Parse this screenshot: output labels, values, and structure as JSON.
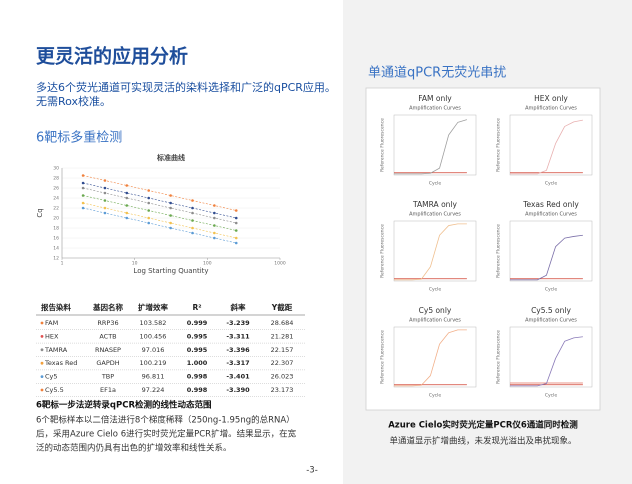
{
  "header": {
    "title": "更灵活的应用分析",
    "subtitle_lines": [
      "多达6个荧光通道可实现灵活的染料选择和广泛的qPCR应用。",
      "无需Rox校准。"
    ]
  },
  "section_title": "6靶标多重检测",
  "standard_curve": {
    "type": "line",
    "title": "标准曲线",
    "xlabel": "Log Starting Quantity",
    "ylabel": "Cq",
    "log_x": true,
    "x": [
      1.95,
      3.9,
      7.8,
      15.6,
      31.25,
      62.5,
      125,
      250
    ],
    "xlim": [
      1,
      1000
    ],
    "xticks": [
      1,
      10,
      100,
      1000
    ],
    "ylim": [
      12,
      30
    ],
    "yticks": [
      12,
      14,
      16,
      18,
      20,
      22,
      24,
      26,
      28,
      30
    ],
    "grid": true,
    "series": [
      {
        "color": "#f0803c",
        "values": [
          28.5,
          27.5,
          26.5,
          25.5,
          24.5,
          23.5,
          22.5,
          21.5
        ]
      },
      {
        "color": "#2f4b8f",
        "values": [
          27,
          26,
          25,
          24,
          23,
          22,
          21,
          20
        ]
      },
      {
        "color": "#8c8c8c",
        "values": [
          26,
          25,
          24,
          23,
          22,
          21,
          20,
          19
        ]
      },
      {
        "color": "#6aa84f",
        "values": [
          24.5,
          23.5,
          22.5,
          21.5,
          20.5,
          19.5,
          18.5,
          17.5
        ]
      },
      {
        "color": "#f2c14e",
        "values": [
          23,
          22,
          21,
          20,
          19,
          18,
          17,
          16
        ]
      },
      {
        "color": "#5b9bd5",
        "values": [
          22,
          21,
          20,
          19,
          18,
          17,
          16,
          15
        ]
      }
    ]
  },
  "table": {
    "header": [
      "报告染料",
      "基因名称",
      "扩增效率",
      "R²",
      "斜率",
      "Y截距"
    ],
    "dot_colors": [
      "#f0803c",
      "#e05050",
      "#8c8c8c",
      "#f2a03c",
      "#5b9bd5",
      "#f0803c"
    ],
    "rows": [
      [
        "FAM",
        "RRP36",
        "103.582",
        "0.999",
        "-3.239",
        "28.684"
      ],
      [
        "HEX",
        "ACTB",
        "100.456",
        "0.995",
        "-3.311",
        "21.281"
      ],
      [
        "TAMRA",
        "RNASEP",
        "97.016",
        "0.995",
        "-3.396",
        "22.157"
      ],
      [
        "Texas Red",
        "GAPDH",
        "100.219",
        "1.000",
        "-3.317",
        "22.307"
      ],
      [
        "Cy5",
        "TBP",
        "96.811",
        "0.998",
        "-3.401",
        "26.023"
      ],
      [
        "Cy5.5",
        "EF1a",
        "97.224",
        "0.998",
        "-3.390",
        "23.173"
      ]
    ]
  },
  "caption": {
    "title": "6靶标一步法逆转录qPCR检测的线性动态范围",
    "lines": [
      "6个靶标样本以二倍法进行8个梯度稀释（250ng-1.95ng的总RNA）",
      "后，采用Azure Cielo 6进行实时荧光定量PCR扩增。结果显示，在宽",
      "泛的动态范围内仍具有出色的扩增效率和线性关系。"
    ]
  },
  "page_number": "-3-",
  "right": {
    "title": "单通道qPCR无荧光串扰",
    "panels": [
      {
        "type": "line",
        "title": "FAM only",
        "subtitle": "Amplification Curves",
        "ylabel": "Reference Fluorescence",
        "xlabel": "Cycle",
        "x": [
          0,
          5,
          10,
          15,
          20,
          25,
          30,
          35,
          40
        ],
        "xlim": [
          0,
          45
        ],
        "ylim": [
          0,
          1.05
        ],
        "series": [
          {
            "color": "#d04030",
            "values": [
              0.04,
              0.04,
              0.04,
              0.04,
              0.04,
              0.04,
              0.04,
              0.04,
              0.04
            ]
          },
          {
            "color": "#a0a0a0",
            "values": [
              0.02,
              0.02,
              0.02,
              0.02,
              0.03,
              0.12,
              0.7,
              0.92,
              0.97
            ]
          }
        ]
      },
      {
        "type": "line",
        "title": "HEX only",
        "subtitle": "Amplification Curves",
        "ylabel": "Reference Fluorescence",
        "xlabel": "Cycle",
        "x": [
          0,
          5,
          10,
          15,
          20,
          25,
          30,
          35,
          40
        ],
        "xlim": [
          0,
          45
        ],
        "ylim": [
          0,
          1.05
        ],
        "series": [
          {
            "color": "#d04030",
            "values": [
              0.04,
              0.04,
              0.04,
              0.04,
              0.04,
              0.04,
              0.04,
              0.04,
              0.04
            ]
          },
          {
            "color": "#e8b0b0",
            "values": [
              0.02,
              0.02,
              0.02,
              0.02,
              0.08,
              0.55,
              0.85,
              0.93,
              0.96
            ]
          }
        ]
      },
      {
        "type": "line",
        "title": "TAMRA only",
        "subtitle": "Amplification Curves",
        "ylabel": "Reference Fluorescence",
        "xlabel": "Cycle",
        "x": [
          0,
          5,
          10,
          15,
          20,
          25,
          30,
          35,
          40
        ],
        "xlim": [
          0,
          45
        ],
        "ylim": [
          0,
          1.05
        ],
        "series": [
          {
            "color": "#d04030",
            "values": [
              0.04,
              0.04,
              0.04,
              0.04,
              0.04,
              0.04,
              0.04,
              0.04,
              0.04
            ]
          },
          {
            "color": "#f0c090",
            "values": [
              0.02,
              0.02,
              0.02,
              0.03,
              0.25,
              0.8,
              0.97,
              1.0,
              1.0
            ]
          }
        ]
      },
      {
        "type": "line",
        "title": "Texas Red only",
        "subtitle": "Amplification Curves",
        "ylabel": "Reference Fluorescence",
        "xlabel": "Cycle",
        "x": [
          0,
          5,
          10,
          15,
          20,
          25,
          30,
          35,
          40
        ],
        "xlim": [
          0,
          45
        ],
        "ylim": [
          0,
          1.05
        ],
        "series": [
          {
            "color": "#d04030",
            "values": [
              0.04,
              0.04,
              0.04,
              0.04,
              0.04,
              0.04,
              0.04,
              0.04,
              0.04
            ]
          },
          {
            "color": "#7a6ea8",
            "values": [
              0.02,
              0.02,
              0.02,
              0.02,
              0.1,
              0.6,
              0.75,
              0.78,
              0.8
            ]
          }
        ]
      },
      {
        "type": "line",
        "title": "Cy5 only",
        "subtitle": "Amplification Curves",
        "ylabel": "Reference Fluorescence",
        "xlabel": "Cycle",
        "x": [
          0,
          5,
          10,
          15,
          20,
          25,
          30,
          35,
          40
        ],
        "xlim": [
          0,
          45
        ],
        "ylim": [
          0,
          1.05
        ],
        "series": [
          {
            "color": "#d04030",
            "values": [
              0.04,
              0.04,
              0.04,
              0.04,
              0.04,
              0.04,
              0.04,
              0.04,
              0.04
            ]
          },
          {
            "color": "#f2b08a",
            "values": [
              0.02,
              0.02,
              0.02,
              0.03,
              0.2,
              0.75,
              0.95,
              1.0,
              1.0
            ]
          }
        ]
      },
      {
        "type": "line",
        "title": "Cy5.5 only",
        "subtitle": "Amplification Curves",
        "ylabel": "Reference Fluorescence",
        "xlabel": "Cycle",
        "x": [
          0,
          5,
          10,
          15,
          20,
          25,
          30,
          35,
          40
        ],
        "xlim": [
          0,
          45
        ],
        "ylim": [
          0,
          1.05
        ],
        "series": [
          {
            "color": "#d04030",
            "values": [
              0.04,
              0.04,
              0.04,
              0.04,
              0.04,
              0.04,
              0.04,
              0.04,
              0.04
            ]
          },
          {
            "color": "#e07060",
            "values": [
              0.07,
              0.07,
              0.07,
              0.07,
              0.07,
              0.07,
              0.07,
              0.07,
              0.07
            ]
          },
          {
            "color": "#8a7ab8",
            "values": [
              0.02,
              0.02,
              0.02,
              0.02,
              0.06,
              0.5,
              0.8,
              0.86,
              0.88
            ]
          }
        ]
      }
    ],
    "caption_title": "Azure Cielo实时荧光定量PCR仪6通道同时检测",
    "caption_text": "单通道显示扩增曲线，未发现光溢出及串扰现象。"
  }
}
